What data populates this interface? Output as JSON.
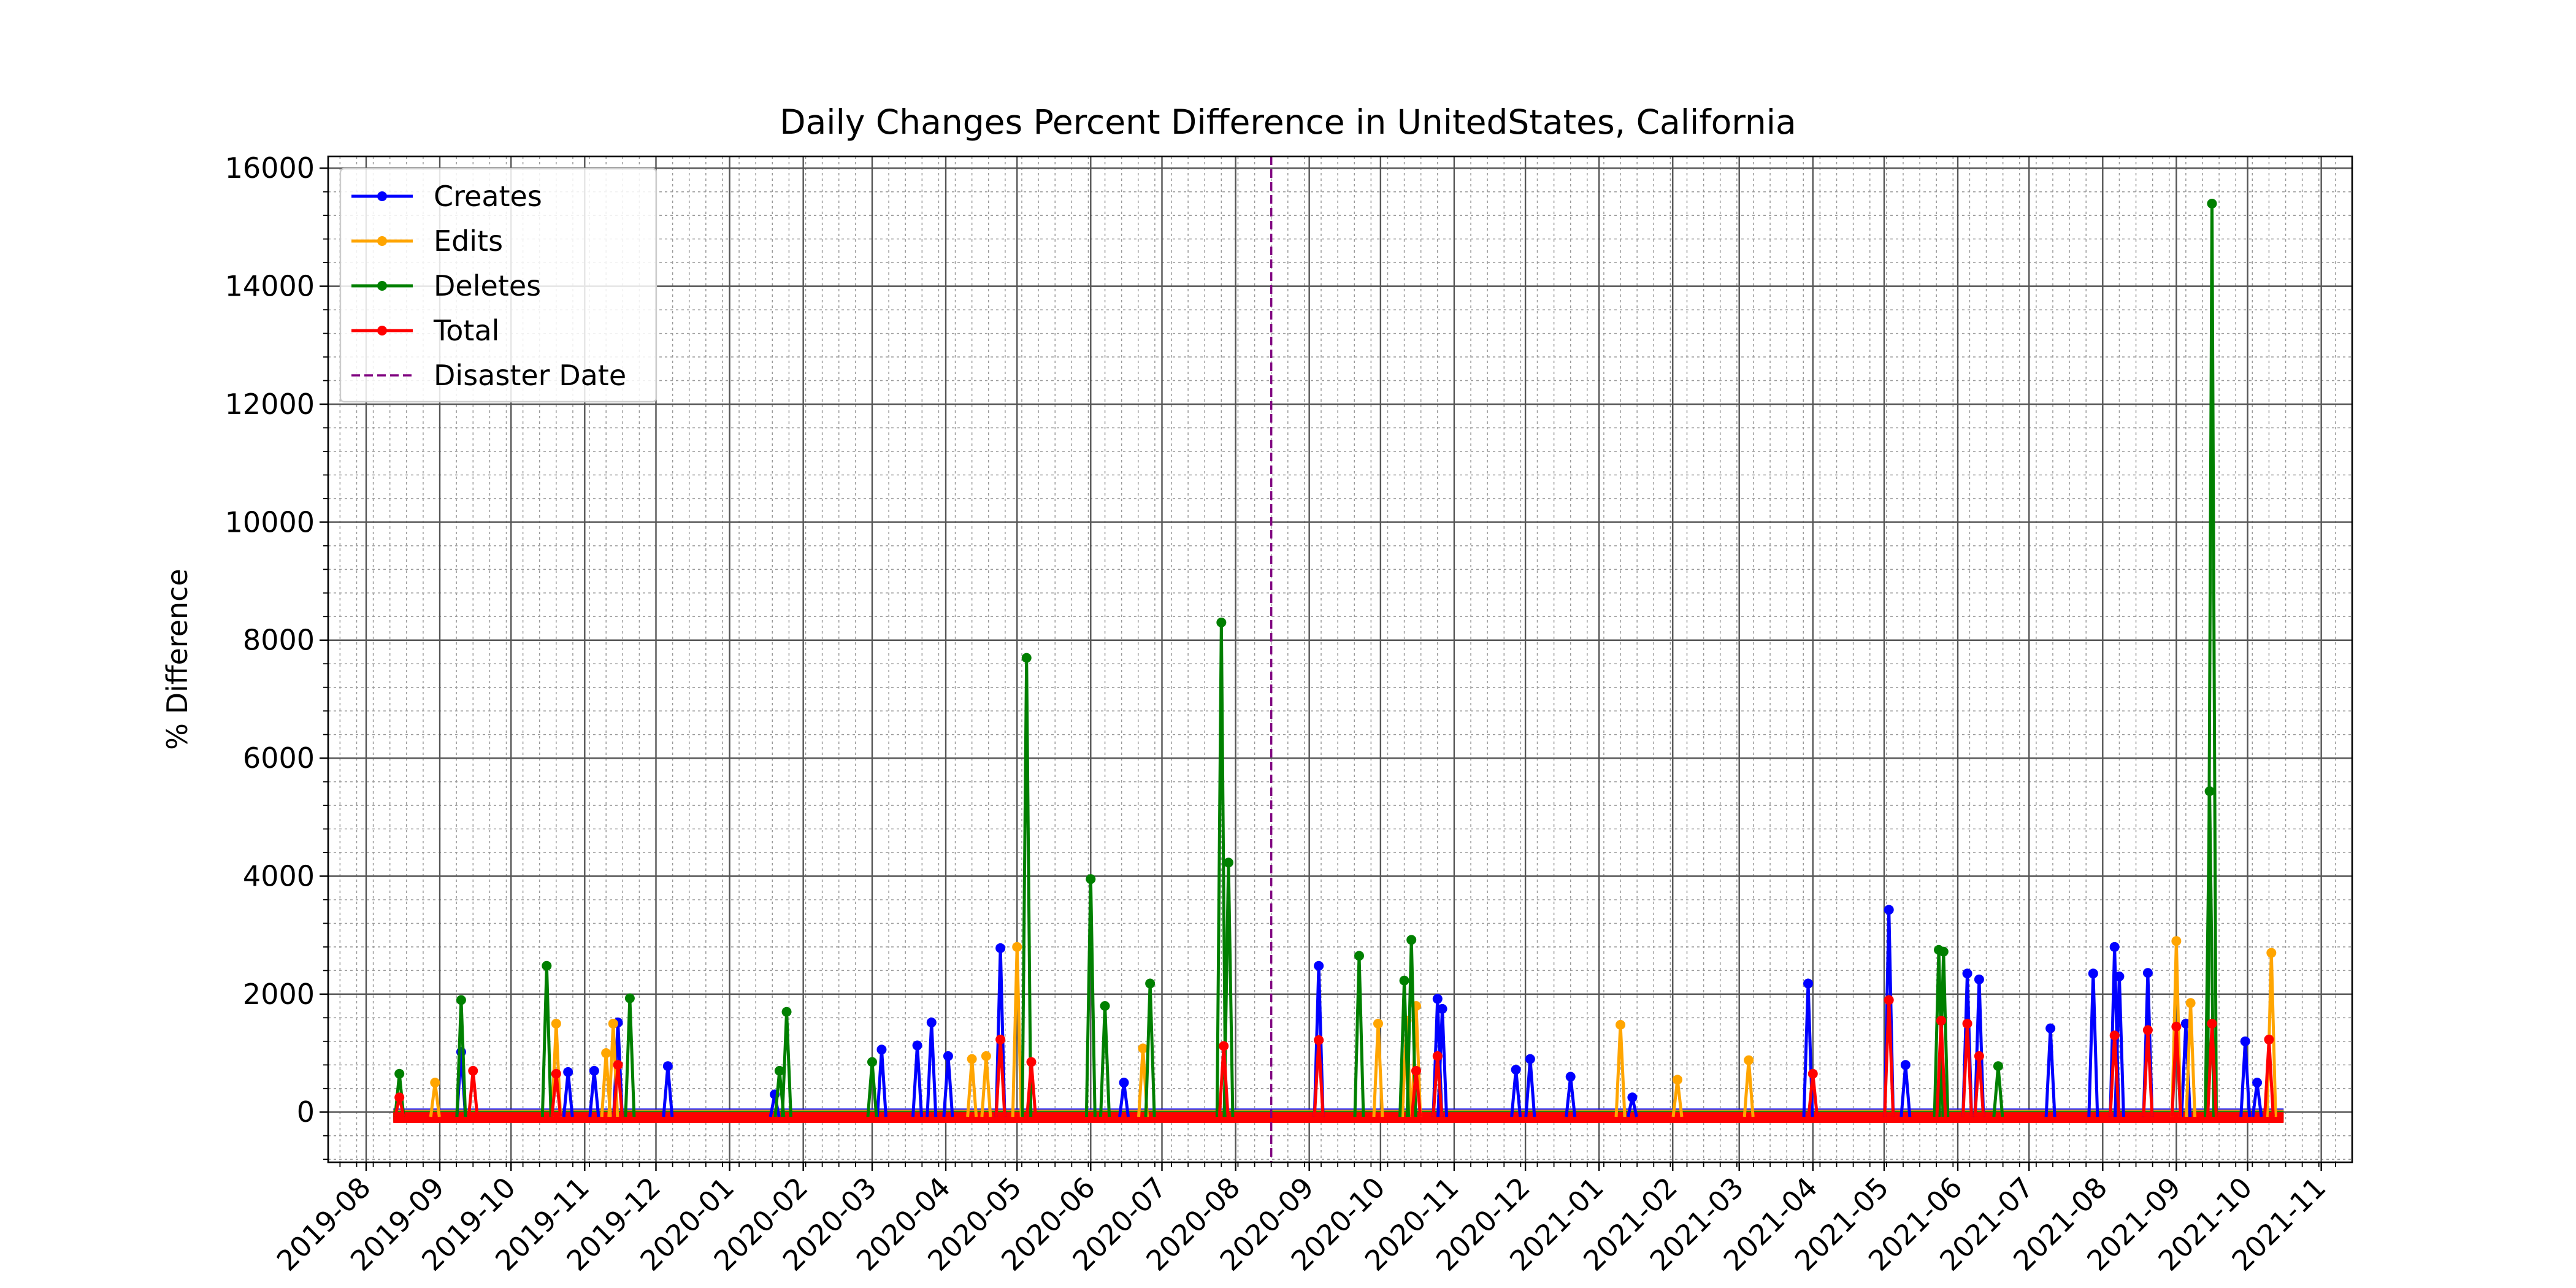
{
  "chart_data": {
    "type": "line",
    "title": "Daily Changes Percent Difference in UnitedStates, California",
    "xlabel": "",
    "ylabel": "% Difference",
    "xlim": [
      "2019-07-16",
      "2021-11-14"
    ],
    "ylim": [
      -850,
      16200
    ],
    "y_ticks": [
      0,
      2000,
      4000,
      6000,
      8000,
      10000,
      12000,
      14000,
      16000
    ],
    "x_ticks": [
      "2019-08",
      "2019-09",
      "2019-10",
      "2019-11",
      "2019-12",
      "2020-01",
      "2020-02",
      "2020-03",
      "2020-04",
      "2020-05",
      "2020-06",
      "2020-07",
      "2020-08",
      "2020-09",
      "2020-10",
      "2020-11",
      "2020-12",
      "2021-01",
      "2021-02",
      "2021-03",
      "2021-04",
      "2021-05",
      "2021-06",
      "2021-07",
      "2021-08",
      "2021-09",
      "2021-10",
      "2021-11"
    ],
    "grid": true,
    "minor_grid": true,
    "legend_position": "upper-left",
    "disaster_date": "2020-08-16",
    "disaster_label": "Disaster Date",
    "disaster_color": "#800080",
    "baseline_value": -80,
    "series": [
      {
        "name": "Creates",
        "color": "#0000ff",
        "values": [
          [
            "2019-09-10",
            1020
          ],
          [
            "2019-10-25",
            680
          ],
          [
            "2019-11-05",
            700
          ],
          [
            "2019-11-15",
            1520
          ],
          [
            "2019-12-06",
            780
          ],
          [
            "2020-01-20",
            300
          ],
          [
            "2020-03-05",
            1060
          ],
          [
            "2020-03-20",
            1130
          ],
          [
            "2020-03-26",
            1520
          ],
          [
            "2020-04-02",
            950
          ],
          [
            "2020-04-24",
            2780
          ],
          [
            "2020-06-15",
            500
          ],
          [
            "2020-09-05",
            2480
          ],
          [
            "2020-10-25",
            1920
          ],
          [
            "2020-10-27",
            1750
          ],
          [
            "2020-11-27",
            720
          ],
          [
            "2020-12-03",
            900
          ],
          [
            "2020-12-20",
            600
          ],
          [
            "2021-01-15",
            250
          ],
          [
            "2021-03-30",
            2180
          ],
          [
            "2021-05-03",
            3430
          ],
          [
            "2021-05-10",
            800
          ],
          [
            "2021-06-05",
            2350
          ],
          [
            "2021-06-10",
            2250
          ],
          [
            "2021-07-10",
            1420
          ],
          [
            "2021-07-28",
            2350
          ],
          [
            "2021-08-06",
            2800
          ],
          [
            "2021-08-08",
            2300
          ],
          [
            "2021-08-20",
            2360
          ],
          [
            "2021-09-05",
            1500
          ],
          [
            "2021-09-30",
            1200
          ],
          [
            "2021-10-05",
            500
          ]
        ]
      },
      {
        "name": "Edits",
        "color": "#ffa500",
        "values": [
          [
            "2019-08-30",
            500
          ],
          [
            "2019-10-20",
            1500
          ],
          [
            "2019-11-10",
            1000
          ],
          [
            "2019-11-13",
            1500
          ],
          [
            "2020-04-12",
            900
          ],
          [
            "2020-04-18",
            950
          ],
          [
            "2020-05-01",
            2800
          ],
          [
            "2020-06-23",
            1080
          ],
          [
            "2020-09-30",
            1500
          ],
          [
            "2020-10-12",
            1550
          ],
          [
            "2020-10-16",
            1800
          ],
          [
            "2021-01-10",
            1480
          ],
          [
            "2021-02-03",
            550
          ],
          [
            "2021-03-05",
            880
          ],
          [
            "2021-09-01",
            2900
          ],
          [
            "2021-09-07",
            1850
          ],
          [
            "2021-10-11",
            2700
          ]
        ]
      },
      {
        "name": "Deletes",
        "color": "#008000",
        "values": [
          [
            "2019-08-15",
            650
          ],
          [
            "2019-09-10",
            1900
          ],
          [
            "2019-10-16",
            2480
          ],
          [
            "2019-11-20",
            1930
          ],
          [
            "2020-01-22",
            700
          ],
          [
            "2020-01-25",
            1700
          ],
          [
            "2020-03-01",
            850
          ],
          [
            "2020-05-05",
            7700
          ],
          [
            "2020-06-01",
            3950
          ],
          [
            "2020-06-07",
            1800
          ],
          [
            "2020-06-26",
            2180
          ],
          [
            "2020-07-26",
            8300
          ],
          [
            "2020-07-29",
            4230
          ],
          [
            "2020-09-22",
            2650
          ],
          [
            "2020-10-11",
            2230
          ],
          [
            "2020-10-14",
            2920
          ],
          [
            "2021-05-24",
            2750
          ],
          [
            "2021-05-26",
            2720
          ],
          [
            "2021-06-18",
            780
          ],
          [
            "2021-09-15",
            5440
          ],
          [
            "2021-09-16",
            15400
          ]
        ]
      },
      {
        "name": "Total",
        "color": "#ff0000",
        "values": [
          [
            "2019-08-15",
            250
          ],
          [
            "2019-09-15",
            700
          ],
          [
            "2019-10-20",
            650
          ],
          [
            "2019-11-15",
            800
          ],
          [
            "2020-04-24",
            1230
          ],
          [
            "2020-05-07",
            850
          ],
          [
            "2020-07-27",
            1120
          ],
          [
            "2020-09-05",
            1220
          ],
          [
            "2020-10-16",
            700
          ],
          [
            "2020-10-25",
            950
          ],
          [
            "2021-04-01",
            650
          ],
          [
            "2021-05-03",
            1900
          ],
          [
            "2021-05-25",
            1550
          ],
          [
            "2021-06-05",
            1500
          ],
          [
            "2021-06-10",
            950
          ],
          [
            "2021-08-06",
            1300
          ],
          [
            "2021-08-20",
            1390
          ],
          [
            "2021-09-01",
            1450
          ],
          [
            "2021-09-16",
            1500
          ],
          [
            "2021-10-10",
            1230
          ]
        ]
      }
    ],
    "legend": [
      "Creates",
      "Edits",
      "Deletes",
      "Total",
      "Disaster Date"
    ]
  }
}
